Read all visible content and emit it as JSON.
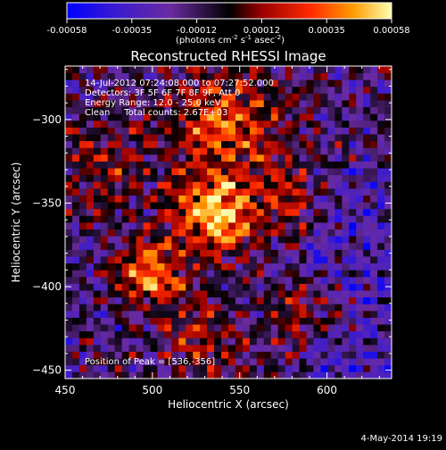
{
  "chart_data": {
    "type": "heatmap",
    "title": "Reconstructed RHESSI Image",
    "xlabel": "Heliocentric X (arcsec)",
    "ylabel": "Heliocentric Y (arcsec)",
    "xlim": [
      450,
      637
    ],
    "ylim": [
      -455,
      -268
    ],
    "x_ticks": [
      450,
      500,
      550,
      600
    ],
    "y_ticks": [
      -300,
      -350,
      -400,
      -450
    ],
    "colorbar": {
      "ticks": [
        "-0.00058",
        "-0.00035",
        "-0.00012",
        "0.00012",
        "0.00035",
        "0.00058"
      ],
      "label_main": "(photons cm",
      "label_sup1": "-2",
      "label_mid1": " s",
      "label_sup2": "-1",
      "label_mid2": " asec",
      "label_sup3": "-2",
      "label_end": ")",
      "colors": [
        "#0000ff",
        "#3a1bd0",
        "#6a2ba0",
        "#000000",
        "#9a0000",
        "#ff2a00",
        "#ff9a00",
        "#ffffb0"
      ]
    },
    "annotations": [
      "14-Jul-2012 07:24:08.000 to 07:27:52.000",
      "Detectors: 3F 5F 6F 7F 8F 9F, Att 0",
      "Energy Range: 12.0 - 25.0 keV",
      "Clean     Total counts: 2.67E+03"
    ],
    "peak_label": "Position of Peak = [536,-356]",
    "peak": [
      536,
      -356
    ]
  },
  "footer": {
    "date": "4-May-2014 19:19"
  }
}
